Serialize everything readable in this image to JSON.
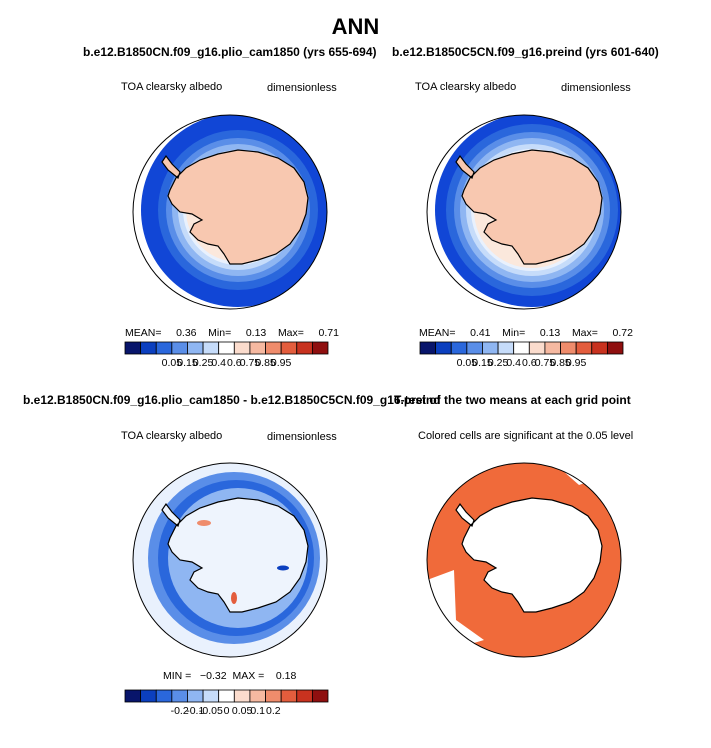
{
  "figure": {
    "title": "ANN"
  },
  "palettes": {
    "albedo_colors": [
      "#08156b",
      "#0b3fbf",
      "#2a67dc",
      "#5a8ee8",
      "#8fb6f2",
      "#c6dcfa",
      "#ffffff",
      "#fbdccd",
      "#f6b9a1",
      "#ef8c6c",
      "#e35d3d",
      "#c8321f",
      "#8f0f0f"
    ],
    "albedo_labels": [
      "0.05",
      "0.15",
      "0.25",
      "0.4",
      "0.6",
      "0.75",
      "0.85",
      "0.95"
    ],
    "diff_colors": [
      "#08156b",
      "#0b3fbf",
      "#2a67dc",
      "#5a8ee8",
      "#8fb6f2",
      "#c6dcfa",
      "#ffffff",
      "#fbdccd",
      "#f6b9a1",
      "#ef8c6c",
      "#e35d3d",
      "#c8321f",
      "#8f0f0f"
    ],
    "diff_labels": [
      "-0.2",
      "-0.1",
      "-0.05",
      "0",
      "0.05",
      "0.1",
      "0.2"
    ],
    "sig_color": "#f06a3a",
    "land_color": "#f8c8b0",
    "ocean_deep": "#1146d6"
  },
  "panels": {
    "p1": {
      "case": "b.e12.B1850CN.f09_g16.plio_cam1850 (yrs 655-694)",
      "variable": "TOA clearsky albedo",
      "units": "dimensionless",
      "mean_label": "MEAN=",
      "mean": "0.36",
      "min_label": "Min=",
      "min": "0.13",
      "max_label": "Max=",
      "max": "0.71"
    },
    "p2": {
      "case": "b.e12.B1850C5CN.f09_g16.preind (yrs 601-640)",
      "variable": "TOA clearsky albedo",
      "units": "dimensionless",
      "mean_label": "MEAN=",
      "mean": "0.41",
      "min_label": "Min=",
      "min": "0.13",
      "max_label": "Max=",
      "max": "0.72"
    },
    "p3": {
      "case": "b.e12.B1850CN.f09_g16.plio_cam1850 - b.e12.B1850C5CN.f09_g16.preind",
      "variable": "TOA clearsky albedo",
      "units": "dimensionless",
      "stats": "MIN =   −0.32  MAX =    0.18"
    },
    "p4": {
      "title": "T-test of the two means at each grid point",
      "subtitle": "Colored cells are significant at the 0.05 level"
    }
  },
  "chart_data": [
    {
      "type": "heatmap",
      "title": "b.e12.B1850CN.f09_g16.plio_cam1850 (yrs 655-694)",
      "variable": "TOA clearsky albedo",
      "units": "dimensionless",
      "projection": "south-polar stereographic",
      "stats": {
        "mean": 0.36,
        "min": 0.13,
        "max": 0.71
      },
      "contour_levels": [
        0.05,
        0.15,
        0.25,
        0.4,
        0.6,
        0.75,
        0.85,
        0.95
      ]
    },
    {
      "type": "heatmap",
      "title": "b.e12.B1850C5CN.f09_g16.preind (yrs 601-640)",
      "variable": "TOA clearsky albedo",
      "units": "dimensionless",
      "projection": "south-polar stereographic",
      "stats": {
        "mean": 0.41,
        "min": 0.13,
        "max": 0.72
      },
      "contour_levels": [
        0.05,
        0.15,
        0.25,
        0.4,
        0.6,
        0.75,
        0.85,
        0.95
      ]
    },
    {
      "type": "heatmap",
      "title": "b.e12.B1850CN.f09_g16.plio_cam1850 - b.e12.B1850C5CN.f09_g16.preind",
      "variable": "TOA clearsky albedo",
      "units": "dimensionless",
      "projection": "south-polar stereographic",
      "stats": {
        "min": -0.32,
        "max": 0.18
      },
      "contour_levels": [
        -0.2,
        -0.1,
        -0.05,
        0,
        0.05,
        0.1,
        0.2
      ]
    },
    {
      "type": "heatmap",
      "title": "T-test of the two means at each grid point",
      "subtitle": "Colored cells are significant at the 0.05 level",
      "significance_level": 0.05
    }
  ]
}
